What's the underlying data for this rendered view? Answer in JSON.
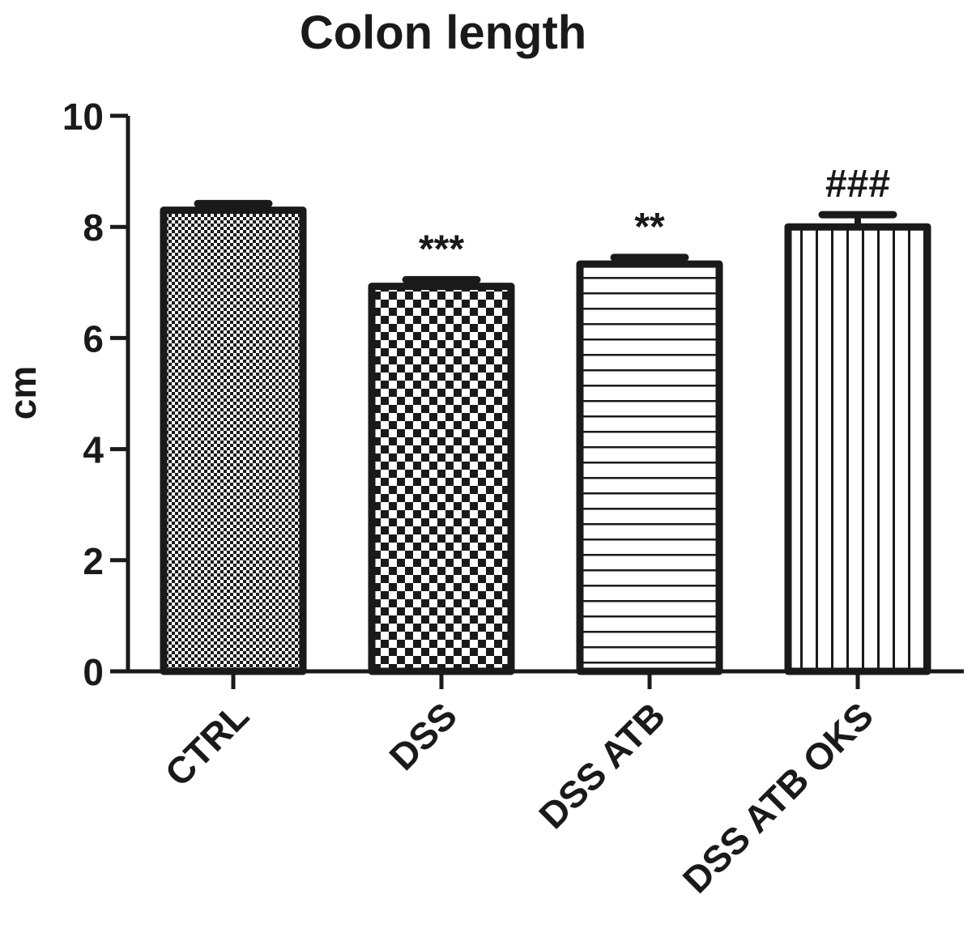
{
  "chart_data": {
    "type": "bar",
    "title": "Colon length",
    "xlabel": "",
    "ylabel": "cm",
    "ylim": [
      0,
      10
    ],
    "yticks": [
      0,
      2,
      4,
      6,
      8,
      10
    ],
    "categories": [
      "CTRL",
      "DSS",
      "DSS ATB",
      "DSS ATB OKS"
    ],
    "values": [
      8.3,
      6.93,
      7.33,
      8.0
    ],
    "errors": [
      0.12,
      0.12,
      0.12,
      0.22
    ],
    "annotations": [
      "",
      "***",
      "**",
      "###"
    ],
    "patterns": [
      "fine-checker",
      "coarse-checker",
      "horizontal-lines",
      "vertical-lines"
    ],
    "grid": false,
    "colors": {
      "ink": "#1a1a1a",
      "background": "#ffffff"
    }
  }
}
